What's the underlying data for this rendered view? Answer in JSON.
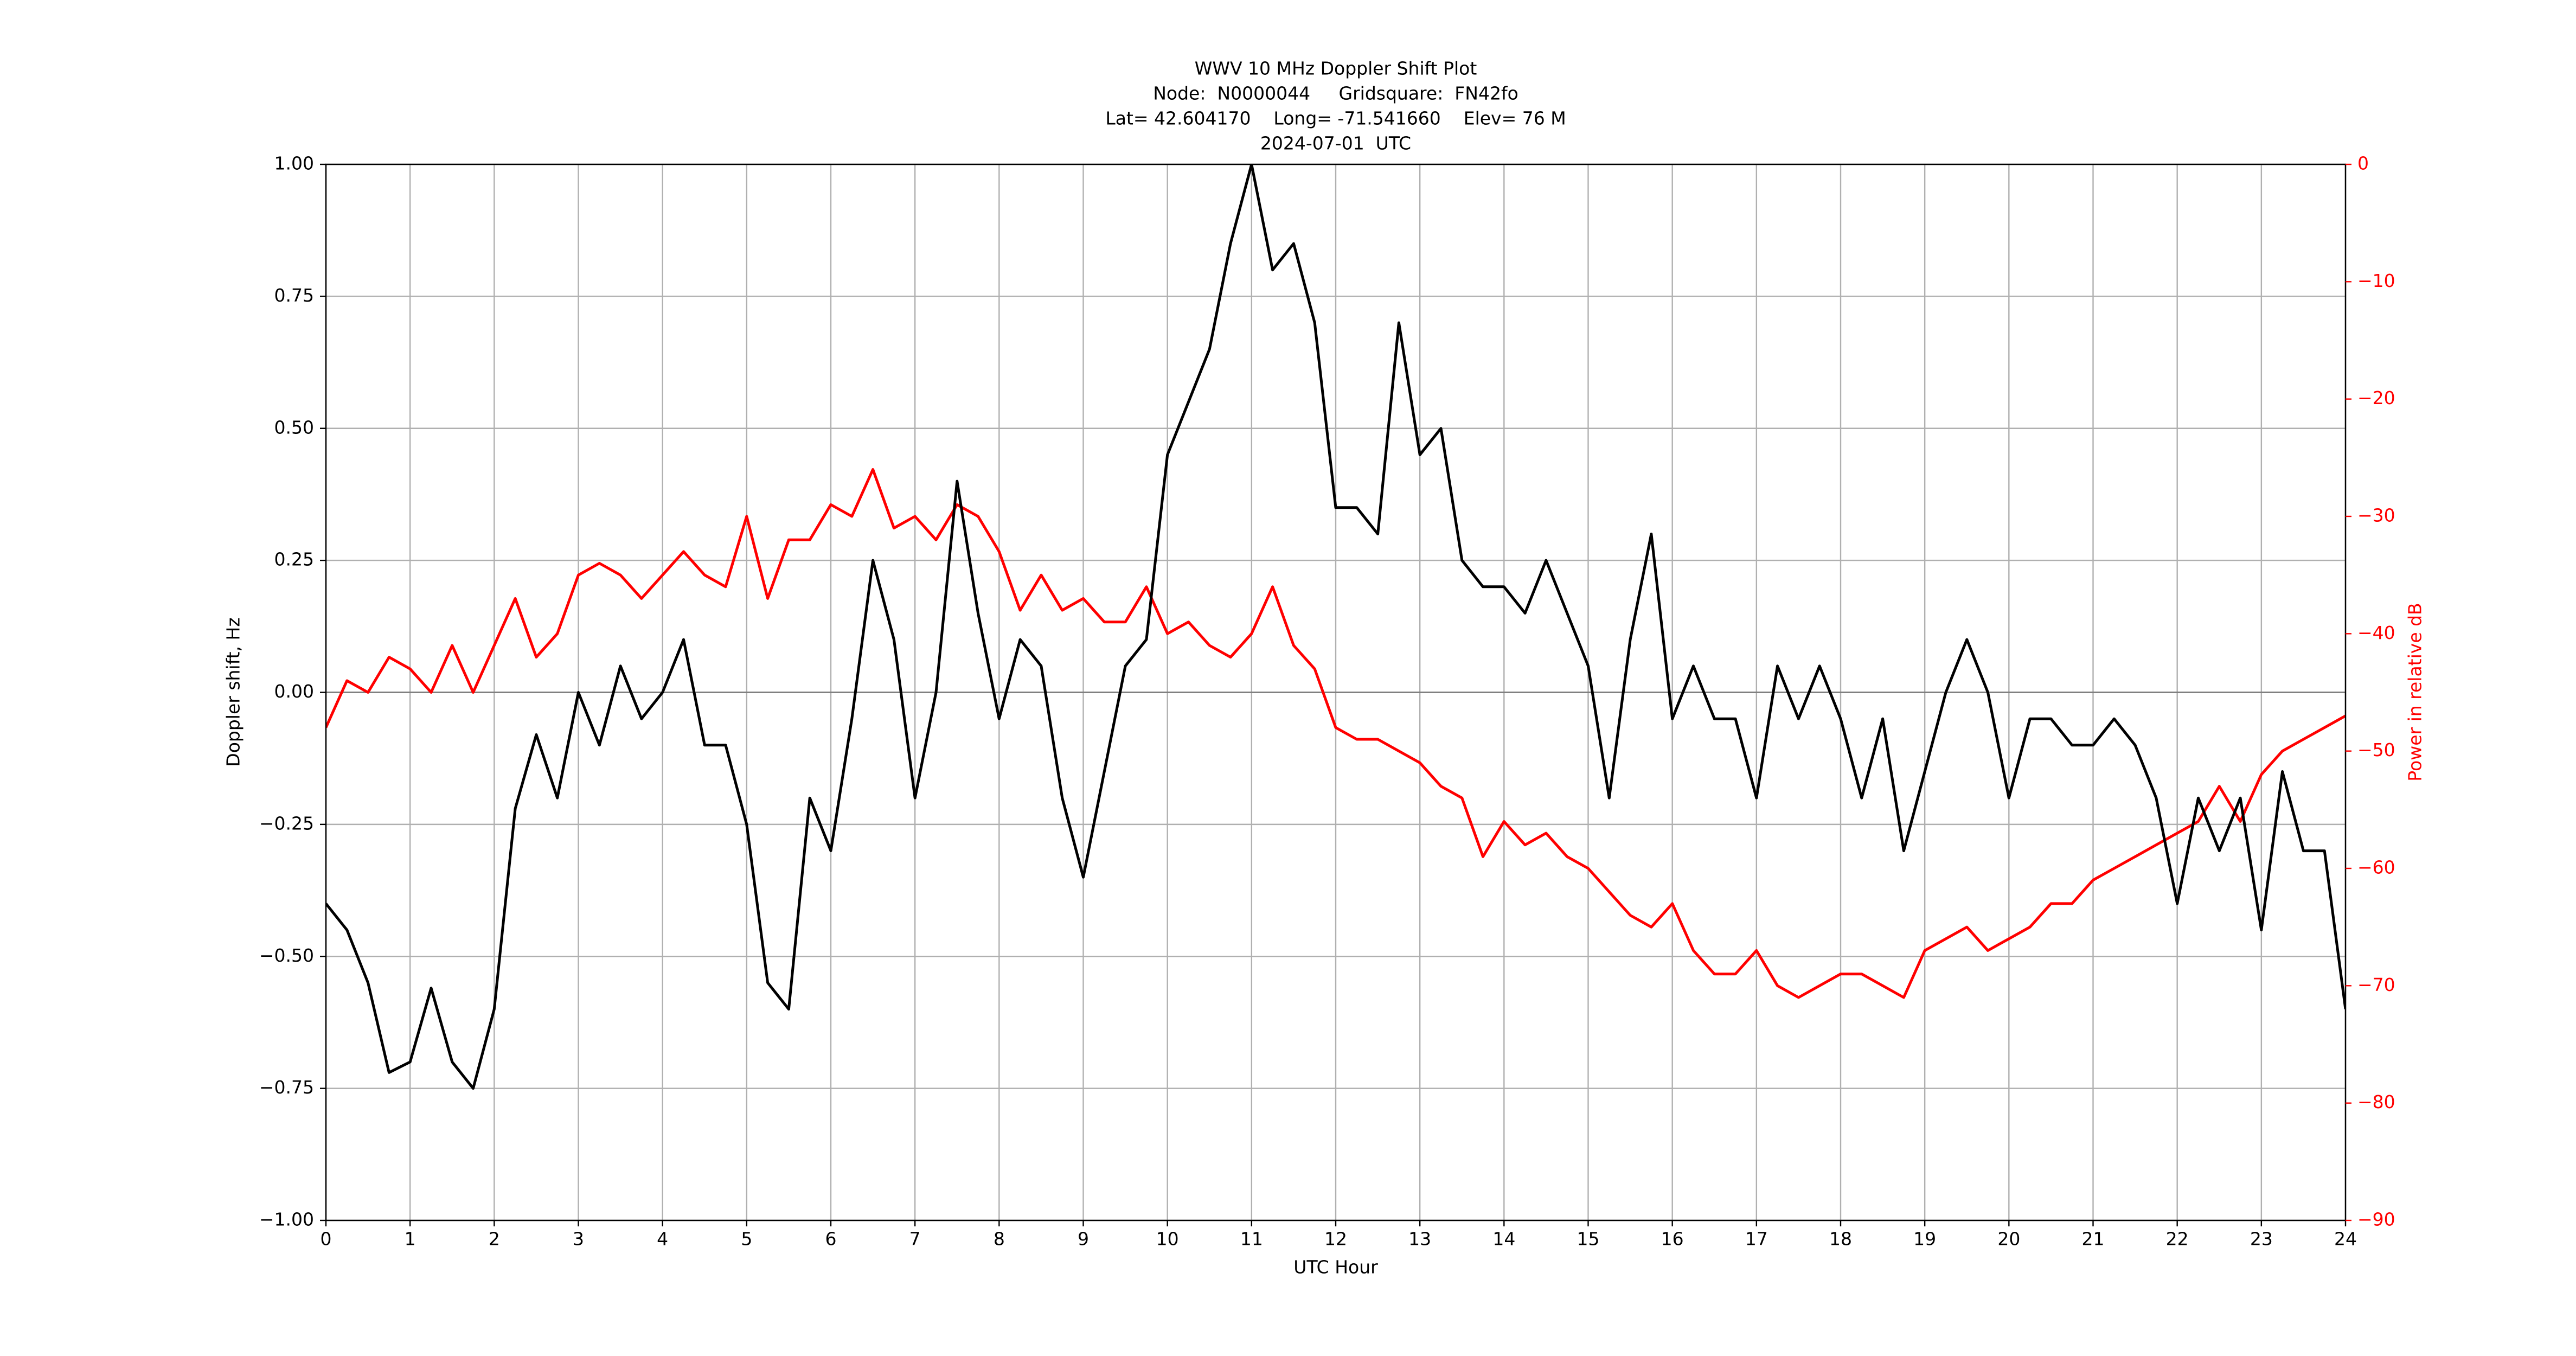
{
  "chart_data": {
    "type": "line",
    "title": [
      "WWV 10 MHz Doppler Shift Plot",
      "Node:  N0000044     Gridsquare:  FN42fo",
      "Lat= 42.604170    Long= -71.541660    Elev= 76 M",
      "2024-07-01  UTC"
    ],
    "xlabel": "UTC Hour",
    "ylabel": "Doppler shift, Hz",
    "y2label": "Power in relative dB",
    "x": [
      0,
      0.25,
      0.5,
      0.75,
      1,
      1.25,
      1.5,
      1.75,
      2,
      2.25,
      2.5,
      2.75,
      3,
      3.25,
      3.5,
      3.75,
      4,
      4.25,
      4.5,
      4.75,
      5,
      5.25,
      5.5,
      5.75,
      6,
      6.25,
      6.5,
      6.75,
      7,
      7.25,
      7.5,
      7.75,
      8,
      8.25,
      8.5,
      8.75,
      9,
      9.25,
      9.5,
      9.75,
      10,
      10.25,
      10.5,
      10.75,
      11,
      11.25,
      11.5,
      11.75,
      12,
      12.25,
      12.5,
      12.75,
      13,
      13.25,
      13.5,
      13.75,
      14,
      14.25,
      14.5,
      14.75,
      15,
      15.25,
      15.5,
      15.75,
      16,
      16.25,
      16.5,
      16.75,
      17,
      17.25,
      17.5,
      17.75,
      18,
      18.25,
      18.5,
      18.75,
      19,
      19.25,
      19.5,
      19.75,
      20,
      20.25,
      20.5,
      20.75,
      21,
      21.25,
      21.5,
      21.75,
      22,
      22.25,
      22.5,
      22.75,
      23,
      23.25,
      23.5,
      23.75,
      24
    ],
    "series": [
      {
        "name": "Doppler shift",
        "color": "#000000",
        "values": [
          -0.4,
          -0.45,
          -0.55,
          -0.72,
          -0.7,
          -0.56,
          -0.7,
          -0.75,
          -0.6,
          -0.22,
          -0.08,
          -0.2,
          0.0,
          -0.1,
          0.05,
          -0.05,
          0.0,
          0.1,
          -0.1,
          -0.1,
          -0.25,
          -0.55,
          -0.6,
          -0.2,
          -0.3,
          -0.05,
          0.25,
          0.1,
          -0.2,
          0.0,
          0.4,
          0.15,
          -0.05,
          0.1,
          0.05,
          -0.2,
          -0.35,
          -0.15,
          0.05,
          0.1,
          0.45,
          0.55,
          0.65,
          0.85,
          1.0,
          0.8,
          0.85,
          0.7,
          0.35,
          0.35,
          0.3,
          0.7,
          0.45,
          0.5,
          0.25,
          0.2,
          0.2,
          0.15,
          0.25,
          0.15,
          0.05,
          -0.2,
          0.1,
          0.3,
          -0.05,
          0.05,
          -0.05,
          -0.05,
          -0.2,
          0.05,
          -0.05,
          0.05,
          -0.05,
          -0.2,
          -0.05,
          -0.3,
          -0.15,
          0.0,
          0.1,
          0.0,
          -0.2,
          -0.05,
          -0.05,
          -0.1,
          -0.1,
          -0.05,
          -0.1,
          -0.2,
          -0.4,
          -0.2,
          -0.3,
          -0.2,
          -0.45,
          -0.15,
          -0.3,
          -0.3,
          -0.6
        ]
      },
      {
        "name": "Power",
        "color": "#ff0000",
        "axis": "y2",
        "values": [
          -48,
          -44,
          -45,
          -42,
          -43,
          -45,
          -41,
          -45,
          -41,
          -37,
          -42,
          -40,
          -35,
          -34,
          -35,
          -37,
          -35,
          -33,
          -35,
          -36,
          -30,
          -37,
          -32,
          -32,
          -29,
          -30,
          -26,
          -31,
          -30,
          -32,
          -29,
          -30,
          -33,
          -38,
          -35,
          -38,
          -37,
          -39,
          -39,
          -36,
          -40,
          -39,
          -41,
          -42,
          -40,
          -36,
          -41,
          -43,
          -48,
          -49,
          -49,
          -50,
          -51,
          -53,
          -54,
          -59,
          -56,
          -58,
          -57,
          -59,
          -60,
          -62,
          -64,
          -65,
          -63,
          -67,
          -69,
          -69,
          -67,
          -70,
          -71,
          -70,
          -69,
          -69,
          -70,
          -71,
          -67,
          -66,
          -65,
          -67,
          -66,
          -65,
          -63,
          -63,
          -61,
          -60,
          -59,
          -58,
          -57,
          -56,
          -53,
          -56,
          -52,
          -50,
          -49,
          -48,
          -47
        ]
      }
    ],
    "xlim": [
      0,
      24
    ],
    "xticks": [
      0,
      1,
      2,
      3,
      4,
      5,
      6,
      7,
      8,
      9,
      10,
      11,
      12,
      13,
      14,
      15,
      16,
      17,
      18,
      19,
      20,
      21,
      22,
      23,
      24
    ],
    "ylim": [
      -1,
      1
    ],
    "yticks": [
      {
        "value": -1,
        "label": "−1.00"
      },
      {
        "value": -0.75,
        "label": "−0.75"
      },
      {
        "value": -0.5,
        "label": "−0.50"
      },
      {
        "value": -0.25,
        "label": "−0.25"
      },
      {
        "value": 0,
        "label": "0.00"
      },
      {
        "value": 0.25,
        "label": "0.25"
      },
      {
        "value": 0.5,
        "label": "0.50"
      },
      {
        "value": 0.75,
        "label": "0.75"
      },
      {
        "value": 1,
        "label": "1.00"
      }
    ],
    "y2lim": [
      -90,
      0
    ],
    "y2ticks": [
      {
        "value": -90,
        "label": "−90"
      },
      {
        "value": -80,
        "label": "−80"
      },
      {
        "value": -70,
        "label": "−70"
      },
      {
        "value": -60,
        "label": "−60"
      },
      {
        "value": -50,
        "label": "−50"
      },
      {
        "value": -40,
        "label": "−40"
      },
      {
        "value": -30,
        "label": "−30"
      },
      {
        "value": -20,
        "label": "−20"
      },
      {
        "value": -10,
        "label": "−10"
      },
      0
    ],
    "y2color": "#ff0000",
    "grid": true,
    "zero_line": true
  }
}
